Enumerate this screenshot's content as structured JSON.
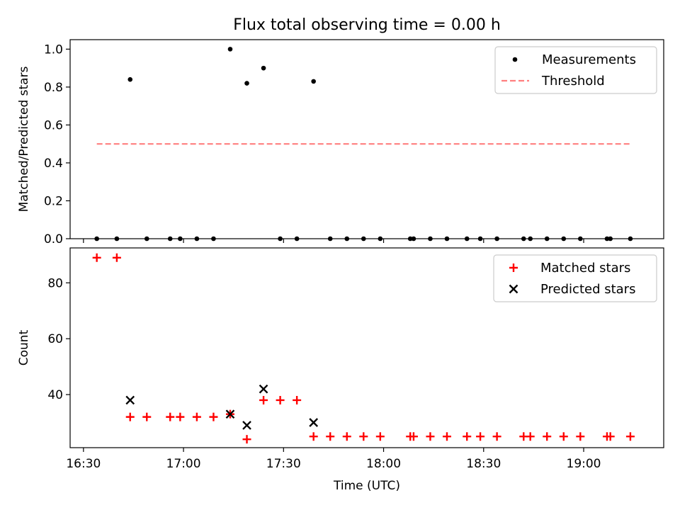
{
  "title": "Flux total observing time = 0.00 h",
  "chart_data": [
    {
      "panel": "top",
      "type": "scatter",
      "ylabel": "Matched/Predicted stars",
      "xlim": [
        "16:26",
        "19:24"
      ],
      "ylim": [
        0,
        1.05
      ],
      "yticks": [
        "0.0",
        "0.2",
        "0.4",
        "0.6",
        "0.8",
        "1.0"
      ],
      "legend_position": "top-right",
      "series": [
        {
          "name": "Measurements",
          "kind": "points",
          "color": "#000000",
          "x": [
            "16:34",
            "16:40",
            "16:44",
            "16:49",
            "16:56",
            "16:59",
            "17:04",
            "17:09",
            "17:14",
            "17:19",
            "17:24",
            "17:29",
            "17:34",
            "17:39",
            "17:44",
            "17:49",
            "17:54",
            "17:59",
            "18:08",
            "18:09",
            "18:14",
            "18:19",
            "18:25",
            "18:29",
            "18:34",
            "18:42",
            "18:44",
            "18:49",
            "18:54",
            "18:59",
            "19:07",
            "19:08",
            "19:14"
          ],
          "y": [
            0,
            0,
            0.84,
            0,
            0,
            0,
            0,
            0,
            1.0,
            0.82,
            0.9,
            0,
            0,
            0.83,
            0,
            0,
            0,
            0,
            0,
            0,
            0,
            0,
            0,
            0,
            0,
            0,
            0,
            0,
            0,
            0,
            0,
            0,
            0
          ]
        },
        {
          "name": "Threshold",
          "kind": "dashed-line",
          "color": "#ff7f7f",
          "x": [
            "16:34",
            "19:14"
          ],
          "y": [
            0.5,
            0.5
          ]
        }
      ]
    },
    {
      "panel": "bottom",
      "type": "scatter",
      "xlabel": "Time (UTC)",
      "ylabel": "Count",
      "xlim": [
        "16:26",
        "19:24"
      ],
      "ylim": [
        21,
        92.5
      ],
      "xticks": [
        "16:30",
        "17:00",
        "17:30",
        "18:00",
        "18:30",
        "19:00"
      ],
      "yticks": [
        "40",
        "60",
        "80"
      ],
      "legend_position": "top-right",
      "series": [
        {
          "name": "Matched stars",
          "marker": "+",
          "color": "#ff0000",
          "x": [
            "16:34",
            "16:40",
            "16:44",
            "16:49",
            "16:56",
            "16:59",
            "17:04",
            "17:09",
            "17:14",
            "17:19",
            "17:24",
            "17:29",
            "17:34",
            "17:39",
            "17:44",
            "17:49",
            "17:54",
            "17:59",
            "18:08",
            "18:09",
            "18:14",
            "18:19",
            "18:25",
            "18:29",
            "18:34",
            "18:42",
            "18:44",
            "18:49",
            "18:54",
            "18:59",
            "19:07",
            "19:08",
            "19:14"
          ],
          "y": [
            89,
            89,
            32,
            32,
            32,
            32,
            32,
            32,
            33,
            24,
            38,
            38,
            38,
            25,
            25,
            25,
            25,
            25,
            25,
            25,
            25,
            25,
            25,
            25,
            25,
            25,
            25,
            25,
            25,
            25,
            25,
            25,
            25
          ]
        },
        {
          "name": "Predicted stars",
          "marker": "x",
          "color": "#000000",
          "x": [
            "16:44",
            "17:14",
            "17:19",
            "17:24",
            "17:39"
          ],
          "y": [
            38,
            33,
            29,
            42,
            30
          ]
        }
      ]
    }
  ]
}
